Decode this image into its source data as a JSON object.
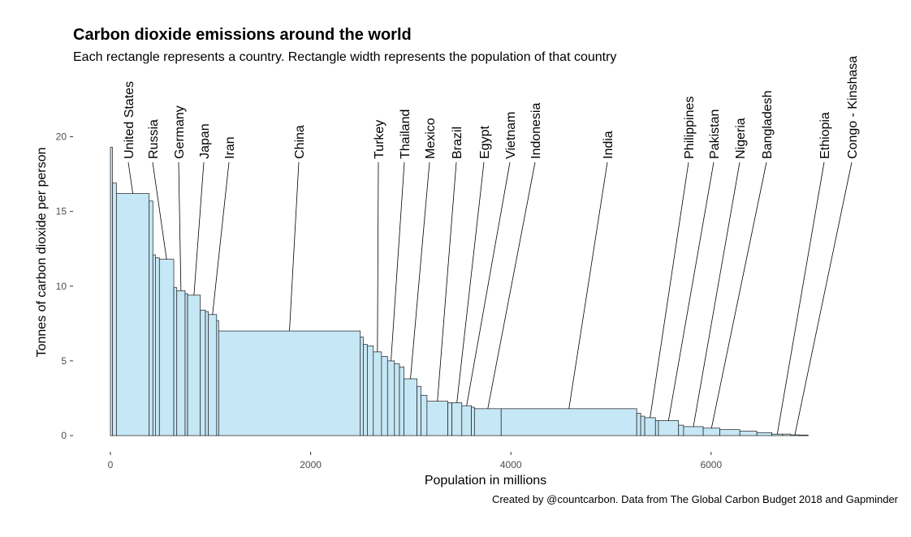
{
  "title": "Carbon dioxide emissions around the world",
  "subtitle": "Each rectangle represents a country. Rectangle width represents the population of that country",
  "caption": "Created by @countcarbon. Data from The Global Carbon Budget 2018 and Gapminder",
  "chart_data": {
    "type": "bar",
    "variable_width": true,
    "title": "Carbon dioxide emissions around the world",
    "xlabel": "Population in millions",
    "ylabel": "Tonnes of carbon dioxide per person",
    "xlim": [
      0,
      7500
    ],
    "ylim": [
      0,
      20
    ],
    "xticks": [
      0,
      2000,
      4000,
      6000
    ],
    "yticks": [
      0,
      5,
      10,
      15,
      20
    ],
    "grid": false,
    "colors": {
      "fill": "#c6e7f5",
      "stroke": "#1a1a1a"
    },
    "bars": [
      {
        "name": "",
        "population": 20,
        "value": 19.3
      },
      {
        "name": "",
        "population": 40,
        "value": 16.9
      },
      {
        "name": "United States",
        "population": 327,
        "value": 16.2
      },
      {
        "name": "",
        "population": 37,
        "value": 15.7
      },
      {
        "name": "",
        "population": 25,
        "value": 12.1
      },
      {
        "name": "",
        "population": 40,
        "value": 11.9
      },
      {
        "name": "Russia",
        "population": 144,
        "value": 11.8
      },
      {
        "name": "",
        "population": 30,
        "value": 9.9
      },
      {
        "name": "Germany",
        "population": 83,
        "value": 9.7
      },
      {
        "name": "",
        "population": 25,
        "value": 9.5
      },
      {
        "name": "Japan",
        "population": 127,
        "value": 9.4
      },
      {
        "name": "",
        "population": 51,
        "value": 8.4
      },
      {
        "name": "",
        "population": 30,
        "value": 8.3
      },
      {
        "name": "Iran",
        "population": 82,
        "value": 8.1
      },
      {
        "name": "",
        "population": 20,
        "value": 7.7
      },
      {
        "name": "China",
        "population": 1415,
        "value": 7.0
      },
      {
        "name": "",
        "population": 30,
        "value": 6.6
      },
      {
        "name": "",
        "population": 40,
        "value": 6.1
      },
      {
        "name": "",
        "population": 60,
        "value": 6.0
      },
      {
        "name": "Turkey",
        "population": 82,
        "value": 5.6
      },
      {
        "name": "",
        "population": 60,
        "value": 5.3
      },
      {
        "name": "Thailand",
        "population": 69,
        "value": 5.0
      },
      {
        "name": "",
        "population": 50,
        "value": 4.8
      },
      {
        "name": "",
        "population": 45,
        "value": 4.6
      },
      {
        "name": "Mexico",
        "population": 130,
        "value": 3.8
      },
      {
        "name": "",
        "population": 40,
        "value": 3.3
      },
      {
        "name": "",
        "population": 60,
        "value": 2.7
      },
      {
        "name": "Brazil",
        "population": 209,
        "value": 2.3
      },
      {
        "name": "",
        "population": 40,
        "value": 2.2
      },
      {
        "name": "Egypt",
        "population": 99,
        "value": 2.2
      },
      {
        "name": "Vietnam",
        "population": 96,
        "value": 2.0
      },
      {
        "name": "",
        "population": 30,
        "value": 1.9
      },
      {
        "name": "Indonesia",
        "population": 267,
        "value": 1.8
      },
      {
        "name": "India",
        "population": 1354,
        "value": 1.8
      },
      {
        "name": "",
        "population": 40,
        "value": 1.5
      },
      {
        "name": "",
        "population": 40,
        "value": 1.3
      },
      {
        "name": "Philippines",
        "population": 107,
        "value": 1.2
      },
      {
        "name": "",
        "population": 30,
        "value": 1.0
      },
      {
        "name": "Pakistan",
        "population": 201,
        "value": 1.0
      },
      {
        "name": "",
        "population": 50,
        "value": 0.7
      },
      {
        "name": "Nigeria",
        "population": 196,
        "value": 0.6
      },
      {
        "name": "Bangladesh",
        "population": 166,
        "value": 0.5
      },
      {
        "name": "",
        "population": 200,
        "value": 0.4
      },
      {
        "name": "",
        "population": 170,
        "value": 0.3
      },
      {
        "name": "",
        "population": 150,
        "value": 0.2
      },
      {
        "name": "Ethiopia",
        "population": 108,
        "value": 0.1
      },
      {
        "name": "",
        "population": 80,
        "value": 0.1
      },
      {
        "name": "Congo - Kinshasa",
        "population": 84,
        "value": 0.05
      },
      {
        "name": "",
        "population": 90,
        "value": 0.04
      }
    ]
  }
}
